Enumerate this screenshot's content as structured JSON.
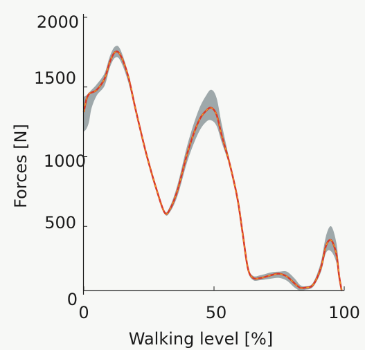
{
  "chart_data": {
    "type": "area",
    "xlabel": "Walking level [%]",
    "ylabel": "Forces [N]",
    "xlim": [
      0,
      100
    ],
    "ylim": [
      0,
      2000
    ],
    "x_ticks": [
      "0",
      "50",
      "100"
    ],
    "y_ticks": [
      "0",
      "500",
      "1000",
      "1500",
      "2000"
    ],
    "grid": false,
    "legend": "none",
    "colors": {
      "band": "#8e9a9c",
      "mean": "#d83a2a",
      "mean_dash": "#f0b020",
      "axis": "#1a1a1a"
    },
    "series": [
      {
        "x": [
          0,
          1,
          2,
          3,
          5,
          8,
          10,
          12,
          14,
          17,
          20,
          24,
          28,
          31,
          33,
          36,
          40,
          44,
          47,
          49,
          51,
          53,
          56,
          59,
          61,
          63,
          65,
          68,
          72,
          75,
          78,
          81,
          83,
          85,
          88,
          91,
          93,
          95,
          97,
          98,
          99
        ],
        "mean": [
          1320,
          1410,
          1450,
          1460,
          1480,
          1560,
          1680,
          1750,
          1730,
          1580,
          1330,
          1020,
          760,
          600,
          620,
          760,
          1040,
          1250,
          1330,
          1350,
          1300,
          1150,
          950,
          700,
          450,
          200,
          130,
          130,
          150,
          160,
          140,
          90,
          60,
          60,
          80,
          200,
          360,
          400,
          300,
          150,
          40
        ],
        "upper": [
          1430,
          1440,
          1460,
          1480,
          1520,
          1600,
          1720,
          1790,
          1770,
          1600,
          1350,
          1040,
          770,
          610,
          640,
          800,
          1100,
          1330,
          1440,
          1480,
          1420,
          1230,
          970,
          710,
          460,
          215,
          145,
          150,
          170,
          175,
          175,
          125,
          80,
          70,
          95,
          240,
          430,
          500,
          380,
          200,
          50
        ],
        "lower": [
          1180,
          1200,
          1250,
          1350,
          1440,
          1510,
          1640,
          1710,
          1690,
          1540,
          1310,
          1000,
          750,
          590,
          600,
          720,
          980,
          1170,
          1250,
          1260,
          1220,
          1100,
          930,
          690,
          440,
          185,
          115,
          115,
          125,
          130,
          110,
          60,
          40,
          45,
          65,
          170,
          310,
          320,
          240,
          120,
          30
        ]
      }
    ]
  }
}
